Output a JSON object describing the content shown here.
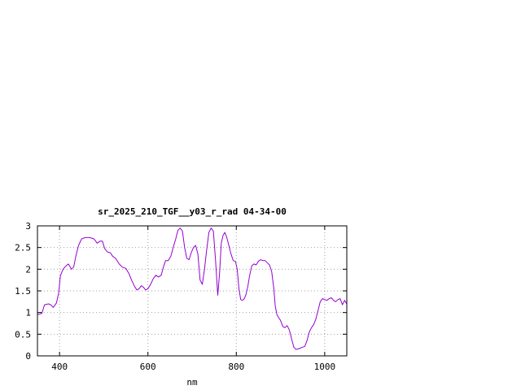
{
  "chart_data": {
    "type": "line",
    "title": "sr_2025_210_TGF__y03_r_rad 04-34-00",
    "xlabel": "nm",
    "ylabel": "",
    "xlim": [
      350,
      1050
    ],
    "ylim": [
      0,
      3
    ],
    "x_ticks": [
      400,
      600,
      800,
      1000
    ],
    "y_ticks": [
      0,
      0.5,
      1,
      1.5,
      2,
      2.5,
      3
    ],
    "y_tick_labels": [
      "0",
      "0.5",
      "1",
      "1.5",
      "2",
      "2.5",
      "3"
    ],
    "grid": true,
    "legend": "none",
    "series_color": "#9400d3",
    "series": [
      {
        "x": [
          350,
          360,
          366,
          375,
          380,
          386,
          393,
          398,
          402,
          408,
          415,
          420,
          427,
          432,
          437,
          443,
          450,
          458,
          468,
          478,
          485,
          492,
          497,
          502,
          508,
          515,
          520,
          527,
          535,
          542,
          550,
          557,
          563,
          570,
          575,
          580,
          585,
          590,
          595,
          600,
          606,
          612,
          618,
          624,
          630,
          635,
          640,
          646,
          652,
          657,
          663,
          668,
          673,
          678,
          683,
          688,
          693,
          698,
          703,
          708,
          713,
          718,
          723,
          728,
          733,
          738,
          743,
          748,
          753,
          758,
          762,
          766,
          770,
          774,
          778,
          783,
          788,
          793,
          798,
          802,
          806,
          810,
          814,
          818,
          822,
          826,
          830,
          835,
          840,
          845,
          850,
          855,
          860,
          865,
          870,
          875,
          880,
          885,
          888,
          892,
          896,
          900,
          905,
          910,
          915,
          920,
          925,
          930,
          935,
          940,
          945,
          950,
          955,
          960,
          965,
          970,
          975,
          980,
          985,
          990,
          995,
          1000,
          1005,
          1010,
          1015,
          1020,
          1025,
          1030,
          1035,
          1040,
          1045,
          1050
        ],
        "y": [
          0.95,
          0.98,
          1.18,
          1.2,
          1.18,
          1.12,
          1.22,
          1.45,
          1.85,
          2.0,
          2.08,
          2.12,
          2.0,
          2.05,
          2.3,
          2.55,
          2.7,
          2.73,
          2.73,
          2.7,
          2.6,
          2.65,
          2.65,
          2.48,
          2.4,
          2.38,
          2.3,
          2.25,
          2.12,
          2.05,
          2.02,
          1.9,
          1.75,
          1.6,
          1.52,
          1.55,
          1.62,
          1.58,
          1.52,
          1.55,
          1.65,
          1.78,
          1.86,
          1.82,
          1.86,
          2.05,
          2.2,
          2.2,
          2.3,
          2.5,
          2.7,
          2.9,
          2.95,
          2.88,
          2.5,
          2.25,
          2.22,
          2.38,
          2.5,
          2.55,
          2.35,
          1.75,
          1.65,
          2.0,
          2.45,
          2.85,
          2.95,
          2.88,
          2.2,
          1.4,
          1.9,
          2.6,
          2.78,
          2.85,
          2.75,
          2.55,
          2.35,
          2.2,
          2.18,
          2.0,
          1.55,
          1.3,
          1.28,
          1.32,
          1.42,
          1.6,
          1.85,
          2.08,
          2.12,
          2.1,
          2.18,
          2.22,
          2.2,
          2.2,
          2.15,
          2.1,
          1.95,
          1.55,
          1.15,
          0.95,
          0.88,
          0.82,
          0.68,
          0.65,
          0.7,
          0.6,
          0.4,
          0.2,
          0.15,
          0.16,
          0.18,
          0.2,
          0.22,
          0.35,
          0.55,
          0.65,
          0.72,
          0.85,
          1.05,
          1.25,
          1.32,
          1.3,
          1.28,
          1.32,
          1.34,
          1.28,
          1.25,
          1.3,
          1.32,
          1.18,
          1.28,
          1.2
        ]
      }
    ]
  }
}
